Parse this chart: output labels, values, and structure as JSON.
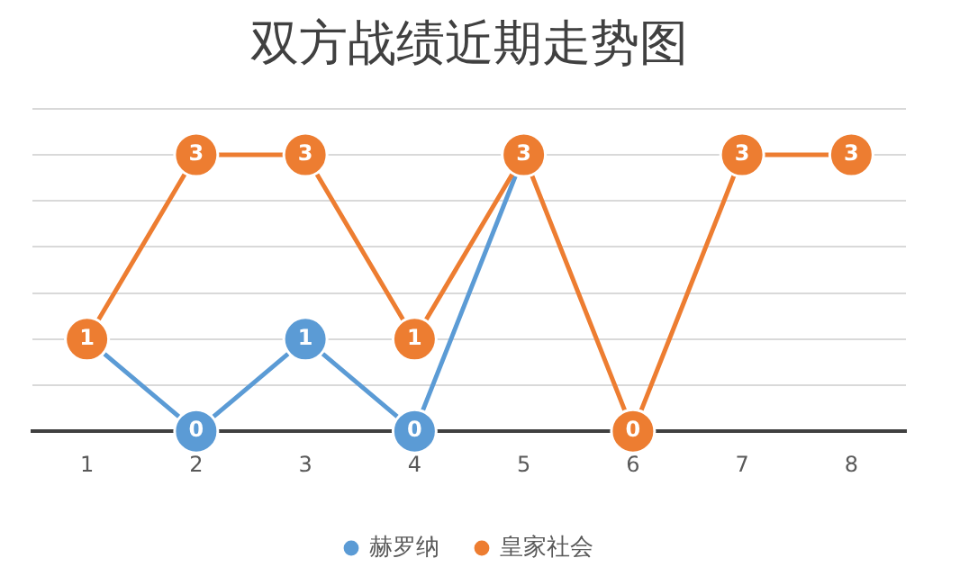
{
  "chart_data": {
    "type": "line",
    "title": "双方战绩近期走势图",
    "categories": [
      "1",
      "2",
      "3",
      "4",
      "5",
      "6",
      "7",
      "8"
    ],
    "series": [
      {
        "name": "赫罗纳",
        "color": "#5b9bd5",
        "values": [
          1,
          0,
          1,
          0,
          3,
          null,
          null,
          null
        ],
        "value_labels": [
          null,
          "0",
          "1",
          "0",
          null,
          null,
          null,
          null
        ]
      },
      {
        "name": "皇家社会",
        "color": "#ed7d31",
        "values": [
          1,
          3,
          3,
          1,
          3,
          0,
          3,
          3
        ],
        "value_labels": [
          "1",
          "3",
          "3",
          "1",
          "3",
          "0",
          "3",
          "3"
        ]
      }
    ],
    "ylim": [
      0,
      3.5
    ],
    "yticks": [
      {
        "value": 0,
        "label": null
      },
      {
        "value": 0.5,
        "label": null
      },
      {
        "value": 1,
        "label": null
      },
      {
        "value": 1.5,
        "label": null
      },
      {
        "value": 2,
        "label": null
      },
      {
        "value": 2.5,
        "label": null
      },
      {
        "value": 3,
        "label": null
      },
      {
        "value": 3.5,
        "label": null
      }
    ],
    "tick_labels": "x",
    "grid": "y",
    "legend": "bottom",
    "marker": "circle",
    "line_style": "solid"
  }
}
